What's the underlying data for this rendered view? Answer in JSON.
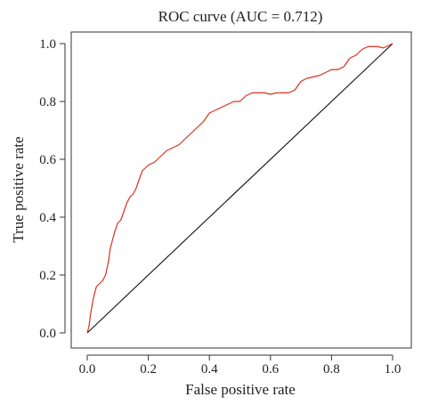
{
  "chart_data": {
    "type": "line",
    "title": "ROC curve (AUC = 0.712)",
    "xlabel": "False positive rate",
    "ylabel": "True positive rate",
    "xlim": [
      0,
      1
    ],
    "ylim": [
      0,
      1
    ],
    "x_ticks": [
      "0.0",
      "0.2",
      "0.4",
      "0.6",
      "0.8",
      "1.0"
    ],
    "y_ticks": [
      "0.0",
      "0.2",
      "0.4",
      "0.6",
      "0.8",
      "1.0"
    ],
    "grid": false,
    "legend": "none",
    "colors": {
      "roc_curve": "#d9301e",
      "reference_line": "#111111",
      "axes": "#333333"
    },
    "series": [
      {
        "x": [
          0.0,
          0.005,
          0.008,
          0.01,
          0.015,
          0.02,
          0.025,
          0.03,
          0.04,
          0.05,
          0.06,
          0.07,
          0.075,
          0.08,
          0.09,
          0.1,
          0.11,
          0.12,
          0.13,
          0.14,
          0.15,
          0.16,
          0.17,
          0.18,
          0.19,
          0.2,
          0.22,
          0.24,
          0.26,
          0.28,
          0.3,
          0.32,
          0.34,
          0.36,
          0.38,
          0.4,
          0.42,
          0.44,
          0.46,
          0.48,
          0.5,
          0.52,
          0.54,
          0.56,
          0.58,
          0.6,
          0.62,
          0.64,
          0.66,
          0.68,
          0.7,
          0.72,
          0.74,
          0.76,
          0.78,
          0.8,
          0.82,
          0.84,
          0.86,
          0.88,
          0.9,
          0.92,
          0.95,
          0.97,
          1.0
        ],
        "values": [
          0.0,
          0.02,
          0.04,
          0.06,
          0.09,
          0.12,
          0.14,
          0.16,
          0.17,
          0.18,
          0.2,
          0.25,
          0.29,
          0.31,
          0.35,
          0.38,
          0.39,
          0.42,
          0.45,
          0.47,
          0.48,
          0.5,
          0.53,
          0.56,
          0.57,
          0.58,
          0.59,
          0.61,
          0.63,
          0.64,
          0.65,
          0.67,
          0.69,
          0.71,
          0.73,
          0.76,
          0.77,
          0.78,
          0.79,
          0.8,
          0.8,
          0.82,
          0.83,
          0.83,
          0.83,
          0.825,
          0.83,
          0.83,
          0.83,
          0.84,
          0.87,
          0.88,
          0.885,
          0.89,
          0.9,
          0.91,
          0.91,
          0.92,
          0.95,
          0.96,
          0.98,
          0.99,
          0.99,
          0.985,
          1.0
        ]
      }
    ]
  }
}
